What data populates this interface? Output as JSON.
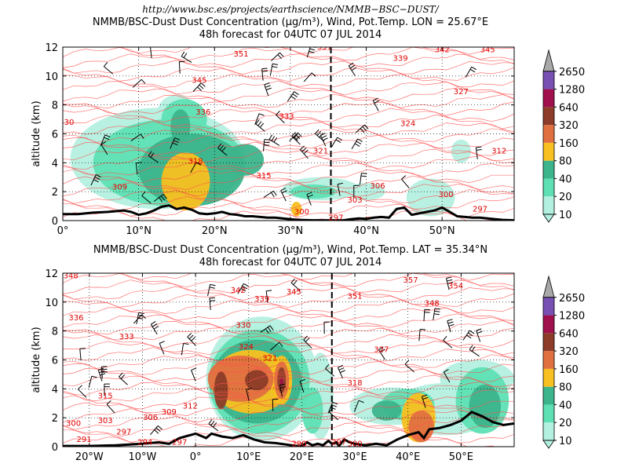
{
  "header": {
    "url": "http://www.bsc.es/projects/earthscience/NMMB−BSC−DUST/"
  },
  "colorbar": {
    "levels": [
      10,
      20,
      40,
      80,
      160,
      320,
      640,
      1280,
      2650
    ],
    "colors": [
      "#b4f0e0",
      "#5ee0b4",
      "#3cb48c",
      "#f8c020",
      "#e07040",
      "#8c3c28",
      "#a0104c",
      "#7850b4",
      "#a8a8a8"
    ]
  },
  "chart_data": [
    {
      "type": "contour",
      "title_line1": "NMMB/BSC-Dust Dust Concentration (µg/m³), Wind, Pot.Temp. LON = 25.67°E",
      "title_line2": "48h forecast for 04UTC 07 JUL 2014",
      "xlabel": "",
      "ylabel": "altitude (km)",
      "xlim": [
        0,
        59.5
      ],
      "ylim": [
        0,
        12
      ],
      "xticks": [
        0,
        10,
        20,
        30,
        40,
        50
      ],
      "xtick_labels": [
        "0°",
        "10°N",
        "20°N",
        "30°N",
        "40°N",
        "50°N"
      ],
      "yticks": [
        0,
        2,
        4,
        6,
        8,
        10,
        12
      ],
      "section_marker_x": 35.34,
      "isentrope_labels": [
        {
          "x": 23.5,
          "y": 11.5,
          "text": "351"
        },
        {
          "x": 34.5,
          "y": 12.0,
          "text": "357"
        },
        {
          "x": 44.5,
          "y": 11.2,
          "text": "339"
        },
        {
          "x": 50,
          "y": 11.8,
          "text": "342"
        },
        {
          "x": 56,
          "y": 11.8,
          "text": "345"
        },
        {
          "x": 18,
          "y": 9.7,
          "text": "345"
        },
        {
          "x": 52.5,
          "y": 8.9,
          "text": "327"
        },
        {
          "x": 18.5,
          "y": 7.5,
          "text": "336"
        },
        {
          "x": 29.5,
          "y": 7.2,
          "text": "333"
        },
        {
          "x": 45.5,
          "y": 6.7,
          "text": "324"
        },
        {
          "x": 0.5,
          "y": 6.8,
          "text": "330"
        },
        {
          "x": 34,
          "y": 4.8,
          "text": "321"
        },
        {
          "x": 57.5,
          "y": 4.8,
          "text": "312"
        },
        {
          "x": 17.5,
          "y": 4.1,
          "text": "318"
        },
        {
          "x": 26.5,
          "y": 3.1,
          "text": "315"
        },
        {
          "x": 41.5,
          "y": 2.4,
          "text": "306"
        },
        {
          "x": 7.5,
          "y": 2.3,
          "text": "309"
        },
        {
          "x": 38.5,
          "y": 1.4,
          "text": "303"
        },
        {
          "x": 50.5,
          "y": 1.8,
          "text": "300"
        },
        {
          "x": 31.5,
          "y": 0.6,
          "text": "300"
        },
        {
          "x": 36,
          "y": 0.2,
          "text": "297"
        },
        {
          "x": 55,
          "y": 0.8,
          "text": "297"
        }
      ],
      "dust_blobs": [
        {
          "level": 0,
          "x": 12.5,
          "y": 4.3,
          "rx": 11.5,
          "ry": 3.5
        },
        {
          "level": 0,
          "x": 15,
          "y": 7.5,
          "rx": 2.5,
          "ry": 1.2
        },
        {
          "level": 0,
          "x": 10,
          "y": 4,
          "rx": 1.2,
          "ry": 2.2
        },
        {
          "level": 0,
          "x": 34,
          "y": 2.2,
          "rx": 5,
          "ry": 0.8
        },
        {
          "level": 0,
          "x": 40,
          "y": 2,
          "rx": 2.5,
          "ry": 0.6
        },
        {
          "level": 0,
          "x": 48.5,
          "y": 1.6,
          "rx": 3.2,
          "ry": 1.3
        },
        {
          "level": 0,
          "x": 52.5,
          "y": 4.8,
          "rx": 1.3,
          "ry": 0.8
        },
        {
          "level": 1,
          "x": 14,
          "y": 4,
          "rx": 10,
          "ry": 3
        },
        {
          "level": 1,
          "x": 16,
          "y": 7,
          "rx": 3,
          "ry": 1.4
        },
        {
          "level": 1,
          "x": 33,
          "y": 2,
          "rx": 3,
          "ry": 0.5
        },
        {
          "level": 2,
          "x": 17,
          "y": 3.5,
          "rx": 7,
          "ry": 2.5
        },
        {
          "level": 2,
          "x": 24,
          "y": 4.2,
          "rx": 2.5,
          "ry": 1.1
        },
        {
          "level": 2,
          "x": 15.5,
          "y": 6.5,
          "rx": 1.3,
          "ry": 1.2
        },
        {
          "level": 3,
          "x": 16.2,
          "y": 2.7,
          "rx": 3.2,
          "ry": 2.0
        },
        {
          "level": 3,
          "x": 30.8,
          "y": 0.8,
          "rx": 0.7,
          "ry": 0.5
        }
      ],
      "terrain": [
        [
          0,
          0.45
        ],
        [
          2,
          0.45
        ],
        [
          4,
          0.55
        ],
        [
          6,
          0.6
        ],
        [
          8,
          0.7
        ],
        [
          9,
          0.6
        ],
        [
          10,
          0.4
        ],
        [
          11,
          0.5
        ],
        [
          12,
          0.7
        ],
        [
          13,
          0.95
        ],
        [
          14,
          1.05
        ],
        [
          15,
          0.8
        ],
        [
          16,
          0.9
        ],
        [
          17,
          0.75
        ],
        [
          18,
          0.5
        ],
        [
          19,
          0.45
        ],
        [
          20,
          0.5
        ],
        [
          21,
          0.6
        ],
        [
          22,
          0.45
        ],
        [
          23,
          0.4
        ],
        [
          24,
          0.3
        ],
        [
          25,
          0.3
        ],
        [
          26,
          0.25
        ],
        [
          27,
          0.2
        ],
        [
          28,
          0.2
        ],
        [
          29,
          0.15
        ],
        [
          30,
          0.1
        ],
        [
          31,
          0.05
        ],
        [
          32,
          0.03
        ],
        [
          33,
          0.02
        ],
        [
          34,
          0.02
        ],
        [
          35,
          0.02
        ],
        [
          36,
          0.02
        ],
        [
          37,
          0.02
        ],
        [
          38,
          0.1
        ],
        [
          39,
          0.15
        ],
        [
          40,
          0.12
        ],
        [
          41,
          0.2
        ],
        [
          42,
          0.25
        ],
        [
          43,
          0.2
        ],
        [
          44,
          0.8
        ],
        [
          45,
          0.9
        ],
        [
          46,
          0.4
        ],
        [
          47,
          0.5
        ],
        [
          48,
          0.6
        ],
        [
          49,
          0.7
        ],
        [
          50,
          0.9
        ],
        [
          51,
          0.6
        ],
        [
          52,
          0.3
        ],
        [
          53,
          0.25
        ],
        [
          54,
          0.2
        ],
        [
          55,
          0.2
        ],
        [
          56,
          0.15
        ],
        [
          57,
          0.1
        ],
        [
          58,
          0.05
        ],
        [
          59.5,
          0.02
        ]
      ]
    },
    {
      "type": "contour",
      "title_line1": "NMMB/BSC-Dust Dust Concentration (µg/m³), Wind, Pot.Temp. LAT = 35.34°N",
      "title_line2": "48h forecast for 04UTC 07 JUL 2014",
      "xlabel": "",
      "ylabel": "altitude (km)",
      "xlim": [
        -25,
        60
      ],
      "ylim": [
        0,
        12
      ],
      "xticks": [
        -20,
        -10,
        0,
        10,
        20,
        30,
        40,
        50
      ],
      "xtick_labels": [
        "20°W",
        "10°W",
        "0°",
        "10°E",
        "20°E",
        "30°E",
        "40°E",
        "50°E"
      ],
      "yticks": [
        0,
        2,
        4,
        6,
        8,
        10,
        12
      ],
      "section_marker_x": 25.67,
      "isentrope_labels": [
        {
          "x": -23.5,
          "y": 11.8,
          "text": "348"
        },
        {
          "x": 8,
          "y": 10.8,
          "text": "342"
        },
        {
          "x": 12.5,
          "y": 10.2,
          "text": "339"
        },
        {
          "x": 18.5,
          "y": 10.7,
          "text": "345"
        },
        {
          "x": 30,
          "y": 10.4,
          "text": "351"
        },
        {
          "x": 40.5,
          "y": 11.5,
          "text": "357"
        },
        {
          "x": 49,
          "y": 11.1,
          "text": "354"
        },
        {
          "x": 44.5,
          "y": 9.9,
          "text": "348"
        },
        {
          "x": -22.5,
          "y": 8.9,
          "text": "336"
        },
        {
          "x": 9,
          "y": 8.4,
          "text": "330"
        },
        {
          "x": -13,
          "y": 7.6,
          "text": "333"
        },
        {
          "x": 9.5,
          "y": 6.9,
          "text": "324"
        },
        {
          "x": 35,
          "y": 6.7,
          "text": "327"
        },
        {
          "x": 14,
          "y": 6.1,
          "text": "321"
        },
        {
          "x": 30,
          "y": 4.4,
          "text": "318"
        },
        {
          "x": -17,
          "y": 3.5,
          "text": "315"
        },
        {
          "x": -1,
          "y": 2.8,
          "text": "312"
        },
        {
          "x": -5,
          "y": 2.4,
          "text": "309"
        },
        {
          "x": -8.5,
          "y": 2.0,
          "text": "306"
        },
        {
          "x": -17,
          "y": 1.8,
          "text": "303"
        },
        {
          "x": -23,
          "y": 1.6,
          "text": "300"
        },
        {
          "x": -13.5,
          "y": 1.0,
          "text": "297"
        },
        {
          "x": -21,
          "y": 0.5,
          "text": "291"
        },
        {
          "x": -9.5,
          "y": 0.3,
          "text": "294"
        },
        {
          "x": -3,
          "y": 0.3,
          "text": "297"
        },
        {
          "x": 19.5,
          "y": 0.2,
          "text": "290"
        },
        {
          "x": 27,
          "y": 0.3,
          "text": "297"
        },
        {
          "x": 30,
          "y": 0.2,
          "text": "300"
        }
      ],
      "dust_blobs": [
        {
          "level": 0,
          "x": 12.5,
          "y": 4.7,
          "rx": 10.5,
          "ry": 4.3
        },
        {
          "level": 0,
          "x": 12,
          "y": 7.4,
          "rx": 5,
          "ry": 1.2
        },
        {
          "level": 0,
          "x": 23.5,
          "y": 3.5,
          "rx": 2.5,
          "ry": 3.0
        },
        {
          "level": 0,
          "x": 37,
          "y": 2.8,
          "rx": 8,
          "ry": 1.3
        },
        {
          "level": 0,
          "x": 53,
          "y": 4.7,
          "rx": 7,
          "ry": 1.3
        },
        {
          "level": 0,
          "x": 47,
          "y": 2.6,
          "rx": 10,
          "ry": 1.8
        },
        {
          "level": 1,
          "x": 12,
          "y": 4.5,
          "rx": 9.5,
          "ry": 3.6
        },
        {
          "level": 1,
          "x": 40,
          "y": 2.9,
          "rx": 5,
          "ry": 1.1
        },
        {
          "level": 1,
          "x": 54,
          "y": 3.2,
          "rx": 5,
          "ry": 2.3
        },
        {
          "level": 1,
          "x": 22,
          "y": 2.5,
          "rx": 2,
          "ry": 1.6
        },
        {
          "level": 2,
          "x": 11.5,
          "y": 4.5,
          "rx": 8.5,
          "ry": 2.9
        },
        {
          "level": 2,
          "x": 36,
          "y": 2.5,
          "rx": 2.8,
          "ry": 0.7
        },
        {
          "level": 2,
          "x": 54.5,
          "y": 2.8,
          "rx": 3,
          "ry": 1.5
        },
        {
          "level": 3,
          "x": 10.5,
          "y": 4.5,
          "rx": 7.5,
          "ry": 2.2
        },
        {
          "level": 3,
          "x": 42,
          "y": 2.0,
          "rx": 3.2,
          "ry": 1.7
        },
        {
          "level": 3,
          "x": 16.2,
          "y": 4.6,
          "rx": 2,
          "ry": 1.7
        },
        {
          "level": 4,
          "x": 8.5,
          "y": 4.7,
          "rx": 6.2,
          "ry": 1.6
        },
        {
          "level": 4,
          "x": 16.2,
          "y": 4.6,
          "rx": 1.4,
          "ry": 1.3
        },
        {
          "level": 4,
          "x": 42.5,
          "y": 1.4,
          "rx": 2.4,
          "ry": 1.1
        },
        {
          "level": 5,
          "x": 4.8,
          "y": 3.9,
          "rx": 1.3,
          "ry": 1.3
        },
        {
          "level": 5,
          "x": 11.5,
          "y": 4.6,
          "rx": 2.2,
          "ry": 0.7
        },
        {
          "level": 5,
          "x": 16.2,
          "y": 4.6,
          "rx": 0.8,
          "ry": 0.9
        },
        {
          "level": 6,
          "x": 16.2,
          "y": 4.5,
          "rx": 0.3,
          "ry": 0.3
        }
      ],
      "terrain": [
        [
          -25,
          0.05
        ],
        [
          -20,
          0.05
        ],
        [
          -15,
          0.1
        ],
        [
          -10,
          0.2
        ],
        [
          -7,
          0.3
        ],
        [
          -5,
          0.2
        ],
        [
          -3,
          0.6
        ],
        [
          0,
          0.9
        ],
        [
          2,
          0.6
        ],
        [
          3,
          0.9
        ],
        [
          5,
          0.7
        ],
        [
          7,
          0.6
        ],
        [
          9,
          0.8
        ],
        [
          11,
          0.5
        ],
        [
          13,
          0.3
        ],
        [
          15,
          0.25
        ],
        [
          17,
          0.15
        ],
        [
          19,
          0.05
        ],
        [
          20,
          0.05
        ],
        [
          21,
          0.3
        ],
        [
          22,
          0.1
        ],
        [
          23,
          0.2
        ],
        [
          24,
          0.1
        ],
        [
          25,
          0.4
        ],
        [
          25.7,
          0.2
        ],
        [
          26.5,
          0.3
        ],
        [
          27,
          0.05
        ],
        [
          28,
          0.5
        ],
        [
          29,
          0.3
        ],
        [
          30,
          0.2
        ],
        [
          32,
          0.1
        ],
        [
          34,
          0.2
        ],
        [
          36,
          0.1
        ],
        [
          38,
          0.5
        ],
        [
          40,
          0.8
        ],
        [
          42,
          1.0
        ],
        [
          43,
          0.6
        ],
        [
          44,
          1.2
        ],
        [
          46,
          1.3
        ],
        [
          48,
          1.5
        ],
        [
          50,
          1.8
        ],
        [
          52,
          2.4
        ],
        [
          54,
          2.1
        ],
        [
          56,
          1.7
        ],
        [
          58,
          1.5
        ],
        [
          60,
          1.6
        ]
      ]
    }
  ]
}
